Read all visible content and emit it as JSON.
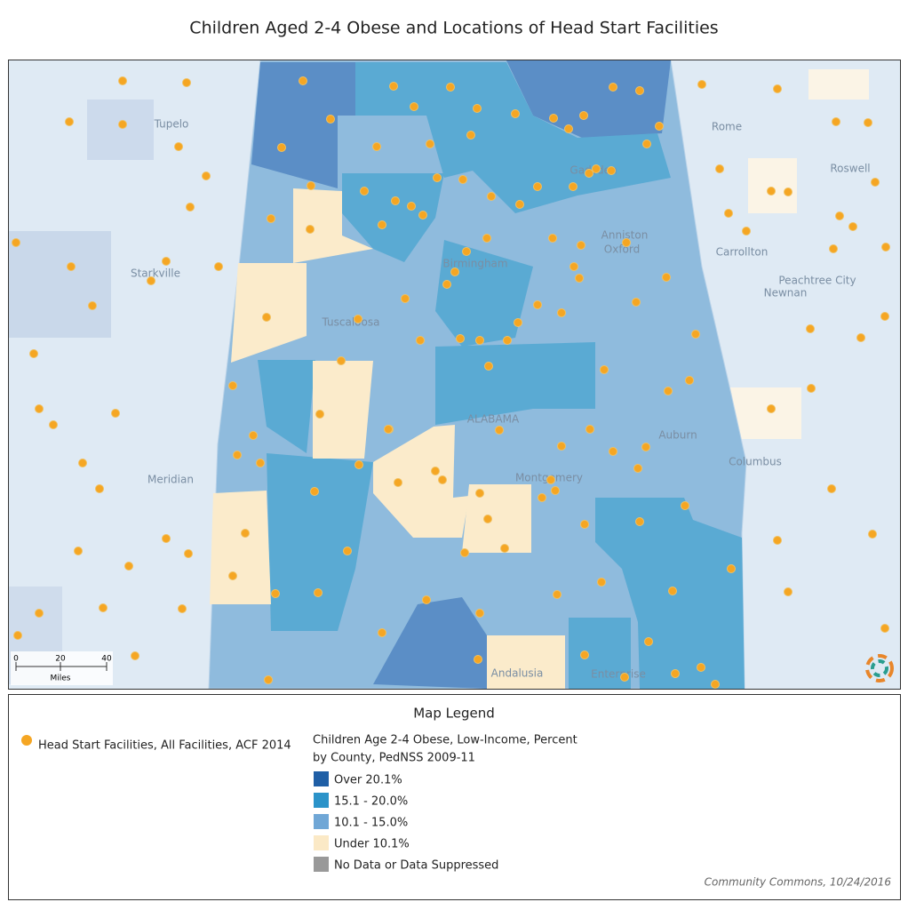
{
  "header": {
    "title": "Children Aged 2-4 Obese and Locations of Head Start Facilities"
  },
  "map": {
    "places": [
      "Tupelo",
      "Rome",
      "Roswell",
      "Starkville",
      "Carrollton",
      "Peachtree City",
      "Newnan",
      "Tuscaloosa",
      "Birmingham",
      "Gadsden",
      "Anniston",
      "Oxford",
      "ALABAMA",
      "Auburn",
      "Montgomery",
      "Columbus",
      "Meridian",
      "Andalusia",
      "Enterprise"
    ],
    "scale": {
      "ticks": [
        "0",
        "20",
        "40"
      ],
      "unit": "Miles"
    }
  },
  "legend": {
    "title": "Map Legend",
    "points_label": "Head Start Facilities, All Facilities, ACF 2014",
    "layer_title": "Children Age 2-4 Obese, Low-Income, Percent",
    "layer_subtitle": "by County, PedNSS 2009-11",
    "classes": [
      "Over 20.1%",
      "15.1 - 20.0%",
      "10.1 - 15.0%",
      "Under 10.1%",
      "No Data or Data Suppressed"
    ]
  },
  "credit": "Community Commons, 10/24/2016"
}
